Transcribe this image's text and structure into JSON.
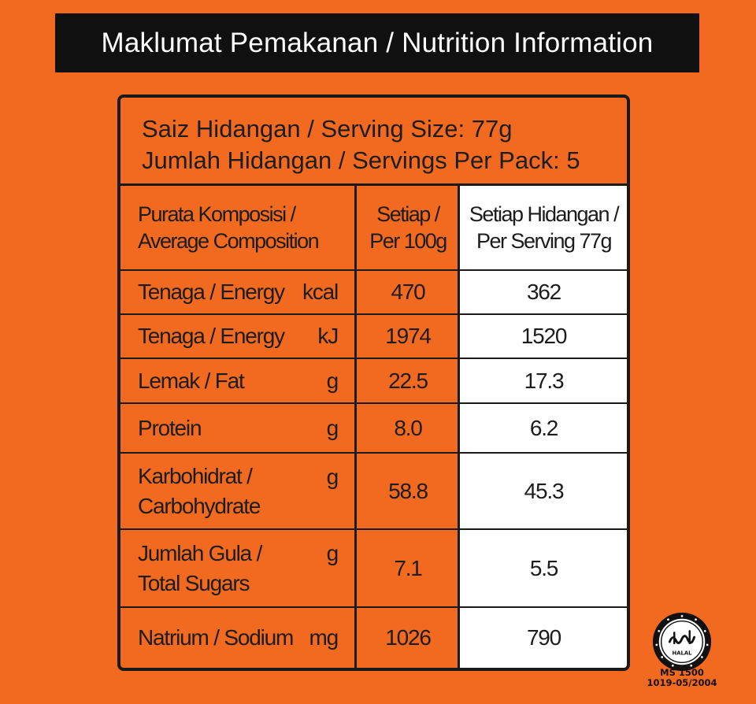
{
  "title": "Maklumat Pemakanan / Nutrition Information",
  "serving": {
    "size": "Saiz Hidangan / Serving Size: 77g",
    "per_pack": "Jumlah Hidangan / Servings Per Pack: 5"
  },
  "table": {
    "headers": {
      "composition_1": "Purata Komposisi /",
      "composition_2": "Average Composition",
      "per100_1": "Setiap /",
      "per100_2": "Per 100g",
      "serving_1": "Setiap Hidangan /",
      "serving_2": "Per Serving 77g"
    },
    "rows": [
      {
        "label": "Tenaga / Energy",
        "label2": "",
        "unit": "kcal",
        "per100": "470",
        "serving": "362"
      },
      {
        "label": "Tenaga / Energy",
        "label2": "",
        "unit": "kJ",
        "per100": "1974",
        "serving": "1520"
      },
      {
        "label": "Lemak / Fat",
        "label2": "",
        "unit": "g",
        "per100": "22.5",
        "serving": "17.3"
      },
      {
        "label": "Protein",
        "label2": "",
        "unit": "g",
        "per100": "8.0",
        "serving": "6.2"
      },
      {
        "label": "Karbohidrat /",
        "label2": "Carbohydrate",
        "unit": "g",
        "per100": "58.8",
        "serving": "45.3"
      },
      {
        "label": "Jumlah Gula /",
        "label2": "Total Sugars",
        "unit": "g",
        "per100": "7.1",
        "serving": "5.5"
      },
      {
        "label": "Natrium / Sodium",
        "label2": "",
        "unit": "mg",
        "per100": "1026",
        "serving": "790"
      }
    ]
  },
  "certification": {
    "standard": "MS 1500",
    "code": "1019-05/2004",
    "logo_text": "HALAL",
    "logo_icon": "halal-seal-icon"
  }
}
